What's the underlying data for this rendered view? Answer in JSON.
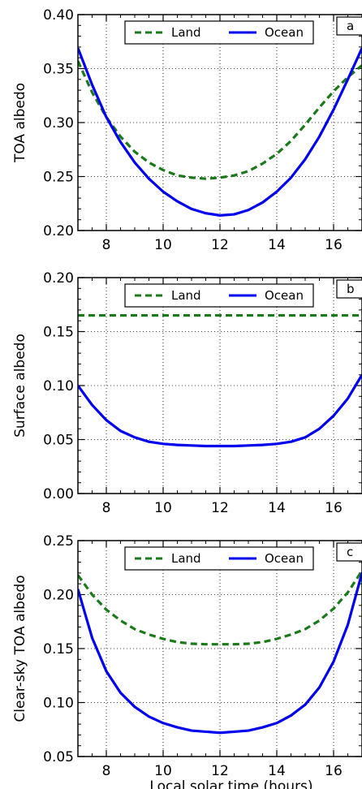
{
  "chart_data": [
    {
      "type": "line",
      "panel_label": "a",
      "xlabel": "",
      "ylabel": "TOA albedo",
      "xlim": [
        7,
        17
      ],
      "ylim": [
        0.2,
        0.4
      ],
      "xticks": [
        8,
        10,
        12,
        14,
        16
      ],
      "yticks": [
        0.2,
        0.25,
        0.3,
        0.35,
        0.4
      ],
      "ytick_labels": [
        "0.20",
        "0.25",
        "0.30",
        "0.35",
        "0.40"
      ],
      "grid": true,
      "legend_position": "top-center",
      "series": [
        {
          "name": "Land",
          "color": "#1a7a1a",
          "style": "dashed",
          "x": [
            7.0,
            7.5,
            8.0,
            8.5,
            9.0,
            9.5,
            10.0,
            10.5,
            11.0,
            11.5,
            12.0,
            12.5,
            13.0,
            13.5,
            14.0,
            14.5,
            15.0,
            15.5,
            16.0,
            16.5,
            17.0
          ],
          "y": [
            0.357,
            0.328,
            0.305,
            0.287,
            0.273,
            0.263,
            0.256,
            0.251,
            0.249,
            0.248,
            0.249,
            0.251,
            0.255,
            0.262,
            0.271,
            0.283,
            0.298,
            0.314,
            0.329,
            0.342,
            0.353
          ]
        },
        {
          "name": "Ocean",
          "color": "#0000ee",
          "style": "solid",
          "x": [
            7.0,
            7.5,
            8.0,
            8.5,
            9.0,
            9.5,
            10.0,
            10.5,
            11.0,
            11.5,
            12.0,
            12.5,
            13.0,
            13.5,
            14.0,
            14.5,
            15.0,
            15.5,
            16.0,
            16.5,
            17.0
          ],
          "y": [
            0.369,
            0.335,
            0.305,
            0.282,
            0.263,
            0.248,
            0.236,
            0.227,
            0.22,
            0.216,
            0.214,
            0.215,
            0.219,
            0.226,
            0.236,
            0.249,
            0.266,
            0.287,
            0.312,
            0.34,
            0.369
          ]
        }
      ]
    },
    {
      "type": "line",
      "panel_label": "b",
      "xlabel": "",
      "ylabel": "Surface albedo",
      "xlim": [
        7,
        17
      ],
      "ylim": [
        0.0,
        0.2
      ],
      "xticks": [
        8,
        10,
        12,
        14,
        16
      ],
      "yticks": [
        0.0,
        0.05,
        0.1,
        0.15,
        0.2
      ],
      "ytick_labels": [
        "0.00",
        "0.05",
        "0.10",
        "0.15",
        "0.20"
      ],
      "grid": true,
      "legend_position": "top-center",
      "series": [
        {
          "name": "Land",
          "color": "#1a7a1a",
          "style": "dashed",
          "x": [
            7.0,
            8.0,
            9.0,
            10.0,
            11.0,
            12.0,
            13.0,
            14.0,
            15.0,
            16.0,
            17.0
          ],
          "y": [
            0.165,
            0.165,
            0.165,
            0.165,
            0.165,
            0.165,
            0.165,
            0.165,
            0.165,
            0.165,
            0.165
          ]
        },
        {
          "name": "Ocean",
          "color": "#0000ee",
          "style": "solid",
          "x": [
            7.0,
            7.5,
            8.0,
            8.5,
            9.0,
            9.5,
            10.0,
            10.5,
            11.0,
            11.5,
            12.0,
            12.5,
            13.0,
            13.5,
            14.0,
            14.5,
            15.0,
            15.5,
            16.0,
            16.5,
            17.0
          ],
          "y": [
            0.1,
            0.082,
            0.068,
            0.058,
            0.052,
            0.048,
            0.046,
            0.045,
            0.0445,
            0.044,
            0.044,
            0.044,
            0.0445,
            0.045,
            0.046,
            0.048,
            0.052,
            0.06,
            0.072,
            0.088,
            0.11
          ]
        }
      ]
    },
    {
      "type": "line",
      "panel_label": "c",
      "xlabel": "Local solar time (hours)",
      "ylabel": "Clear-sky TOA albedo",
      "xlim": [
        7,
        17
      ],
      "ylim": [
        0.05,
        0.25
      ],
      "xticks": [
        8,
        10,
        12,
        14,
        16
      ],
      "yticks": [
        0.05,
        0.1,
        0.15,
        0.2,
        0.25
      ],
      "ytick_labels": [
        "0.05",
        "0.10",
        "0.15",
        "0.20",
        "0.25"
      ],
      "grid": true,
      "legend_position": "top-center",
      "series": [
        {
          "name": "Land",
          "color": "#1a7a1a",
          "style": "dashed",
          "x": [
            7.0,
            7.5,
            8.0,
            8.5,
            9.0,
            9.5,
            10.0,
            10.5,
            11.0,
            11.5,
            12.0,
            12.5,
            13.0,
            13.5,
            14.0,
            14.5,
            15.0,
            15.5,
            16.0,
            16.5,
            17.0
          ],
          "y": [
            0.218,
            0.2,
            0.186,
            0.176,
            0.168,
            0.163,
            0.159,
            0.156,
            0.1545,
            0.154,
            0.154,
            0.154,
            0.1545,
            0.156,
            0.159,
            0.163,
            0.168,
            0.176,
            0.187,
            0.202,
            0.222
          ]
        },
        {
          "name": "Ocean",
          "color": "#0000ee",
          "style": "solid",
          "x": [
            7.0,
            7.5,
            8.0,
            8.5,
            9.0,
            9.5,
            10.0,
            10.5,
            11.0,
            11.5,
            12.0,
            12.5,
            13.0,
            13.5,
            14.0,
            14.5,
            15.0,
            15.5,
            16.0,
            16.5,
            17.0
          ],
          "y": [
            0.205,
            0.16,
            0.129,
            0.109,
            0.096,
            0.087,
            0.081,
            0.077,
            0.074,
            0.073,
            0.072,
            0.073,
            0.074,
            0.077,
            0.081,
            0.088,
            0.098,
            0.114,
            0.138,
            0.172,
            0.22
          ]
        }
      ]
    }
  ]
}
